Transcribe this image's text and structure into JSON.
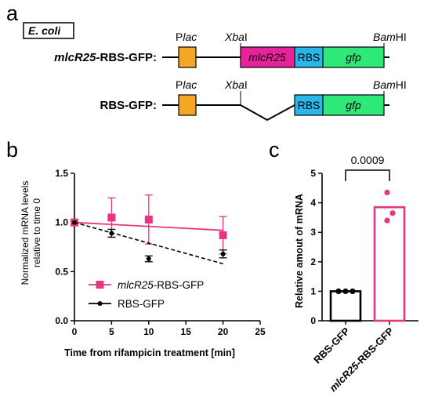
{
  "panel_a": {
    "letter": "a",
    "organism": "E. coli",
    "constructs": [
      {
        "label_italic": "mlcR25",
        "label_rest": "-RBS-GFP:"
      },
      {
        "label_italic": "",
        "label_rest": "RBS-GFP:"
      }
    ],
    "promoter": {
      "p": "P",
      "sub": "lac"
    },
    "site_xba": {
      "ital": "Xba",
      "rest": "I"
    },
    "site_bam": {
      "ital": "Bam",
      "rest": "HI"
    },
    "box_mlcr25": "mlcR25",
    "box_rbs": "RBS",
    "box_gfp": "gfp",
    "colors": {
      "promoter": "#f5a623",
      "mlcr25": "#e6239a",
      "rbs": "#29b6e8",
      "gfp": "#2ee87a"
    }
  },
  "panel_b": {
    "letter": "b",
    "chart_data": {
      "type": "line",
      "x": [
        0,
        5,
        10,
        20
      ],
      "xlabel": "Time from rifampicin treatment [min]",
      "ylabel": "Normalized mRNA levels relative to time 0",
      "xlim": [
        0,
        25
      ],
      "ylim": [
        0,
        1.5
      ],
      "x_ticks": [
        "0",
        "5",
        "10",
        "15",
        "20",
        "25"
      ],
      "y_ticks": [
        "0.0",
        "0.5",
        "1.0",
        "1.5"
      ],
      "legend_position": "bottom-left",
      "series": [
        {
          "name_italic": "mlcR25",
          "name_rest": "-RBS-GFP",
          "values": [
            1.0,
            1.05,
            1.03,
            0.87
          ],
          "err": [
            0,
            0.2,
            0.25,
            0.19
          ],
          "fit": [
            1.0,
            0.92
          ],
          "color": "#e8357f"
        },
        {
          "name_italic": "",
          "name_rest": "RBS-GFP",
          "values": [
            1.0,
            0.89,
            0.63,
            0.68
          ],
          "err": [
            0,
            0.04,
            0.03,
            0.04
          ],
          "fit": [
            1.0,
            0.58
          ],
          "color": "#000000"
        }
      ]
    }
  },
  "panel_c": {
    "letter": "c",
    "chart_data": {
      "type": "bar",
      "categories": [
        {
          "italic": "",
          "rest": "RBS-GFP"
        },
        {
          "italic": "mlcR25",
          "rest": "-RBS-GFP"
        }
      ],
      "values": [
        1.0,
        3.85
      ],
      "points": [
        [
          1.0,
          1.0,
          1.0
        ],
        [
          4.35,
          3.65,
          3.4
        ]
      ],
      "ylabel": "Relative amout of mRNA",
      "ylim": [
        0,
        5
      ],
      "y_ticks": [
        "0",
        "1",
        "2",
        "3",
        "4",
        "5"
      ],
      "p_value": "0.0009",
      "colors": [
        "#000000",
        "#e8357f"
      ]
    }
  }
}
